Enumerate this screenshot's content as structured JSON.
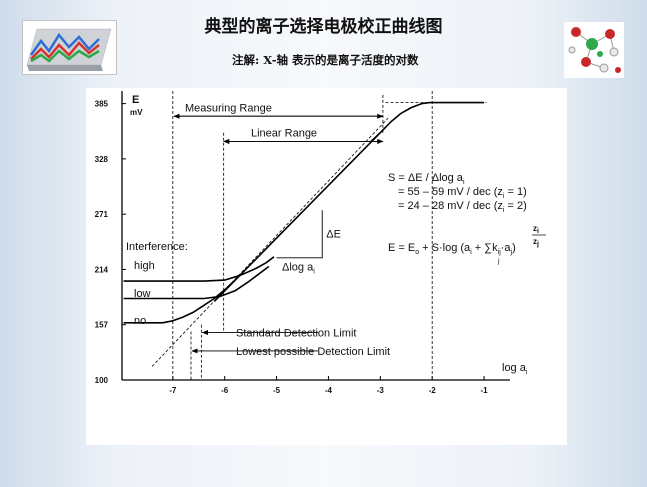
{
  "slide": {
    "title": "典型的离子选择电极校正曲线图",
    "note": "注解: X-轴 表示的是离子活度的对数"
  },
  "chart_data": {
    "type": "line",
    "x_axis": {
      "ticks": [
        -7,
        -6,
        -5,
        -4,
        -3,
        -2,
        -1
      ],
      "tick_labels": [
        "-7",
        "-6",
        "-5",
        "-4",
        "-3",
        "-2",
        "-1"
      ],
      "label_main": "log a",
      "label_sub": "i",
      "range": [
        -7.98,
        -0.5
      ]
    },
    "y_axis": {
      "ticks": [
        100,
        157,
        214,
        271,
        328,
        385
      ],
      "tick_labels": [
        "100",
        "157",
        "214",
        "271",
        "328",
        "385"
      ],
      "label": "E",
      "unit": "mV",
      "range": [
        100,
        398
      ]
    },
    "series": [
      {
        "key": "high",
        "label": "high",
        "x": [
          -7.95,
          -6.8,
          -6.4,
          -6.0,
          -5.7,
          -5.4,
          -5.2,
          -5.05
        ],
        "y": [
          202,
          202,
          202,
          203,
          208,
          215,
          221,
          227
        ]
      },
      {
        "key": "low",
        "label": "low",
        "x": [
          -7.95,
          -6.8,
          -6.4,
          -6.1,
          -5.8,
          -5.55,
          -5.35,
          -5.15
        ],
        "y": [
          184,
          184,
          184,
          186,
          192,
          201,
          209,
          217
        ]
      },
      {
        "key": "no",
        "label": "no",
        "x": [
          -7.95,
          -7.2,
          -7.0,
          -6.8,
          -6.6,
          -6.4,
          -6.2,
          -6.0,
          -5.8
        ],
        "y": [
          159,
          159,
          161,
          165,
          170,
          177,
          184,
          193,
          203
        ]
      },
      {
        "key": "linear",
        "label": "",
        "x": [
          -6.2,
          -3.0
        ],
        "y": [
          181,
          355
        ]
      },
      {
        "key": "upper",
        "label": "",
        "x": [
          -3.2,
          -3.0,
          -2.8,
          -2.6,
          -2.4,
          -2.2,
          -2.05,
          -1.0
        ],
        "y": [
          345,
          355,
          366,
          375,
          381,
          385,
          386,
          386
        ]
      }
    ],
    "guides": {
      "extrapolated_line": {
        "x": [
          -7.4,
          -2.85
        ],
        "y": [
          114,
          370
        ]
      },
      "upper_asymptote": {
        "x": [
          -2.9,
          -0.95
        ],
        "y": [
          386,
          386
        ]
      },
      "left_vertical_x": -7.0,
      "right_vertical_x": -2.0,
      "measuring_left_x": -6.98,
      "measuring_right_x": -2.95,
      "linear_left_x": -6.02,
      "linear_right_x": -2.95,
      "std_limit_x": -6.45,
      "lowest_limit_x": -6.65,
      "slope_triangle": {
        "x1": -5.0,
        "x2": -4.12,
        "y1": 226,
        "y2": 275
      }
    },
    "annotations": {
      "measuring_range": "Measuring Range",
      "linear_range": "Linear Range",
      "interference": "Interference:",
      "standard_detection_limit": "Standard Detection Limit",
      "lowest_detection_limit": "Lowest possible Detection Limit",
      "delta_e": "ΔE",
      "delta_log": "Δlog a",
      "delta_log_sub": "i",
      "slope_def": "S = ΔE / Δlog a",
      "slope_def_sub": "i",
      "slope_1": "= 55 – 59 mV / dec (z",
      "slope_1_sub": "i",
      "slope_1_end": " = 1)",
      "slope_2": "= 24 – 28 mV / dec (z",
      "slope_2_sub": "i",
      "slope_2_end": " = 2)",
      "eq_part1": "E = E",
      "eq_sub_o": "o",
      "eq_part2": " + S·log (a",
      "eq_sub_i": "i",
      "eq_part3": " + ",
      "eq_sum": "∑",
      "eq_sum_sub": "j",
      "eq_part4": "k",
      "eq_sub_ij": "ij",
      "eq_part5": "·a",
      "eq_sub_j": "j",
      "eq_exp_num": "z",
      "eq_exp_num_sub": "i",
      "eq_exp_den": "z",
      "eq_exp_den_sub": "j",
      "eq_end": ")"
    }
  },
  "colors": {
    "curve": "#000000",
    "guide": "#000000",
    "panel": "#ffffff"
  },
  "thumbnails": {
    "left_icon": "line-chart-thumbnail-icon",
    "right_icon": "molecule-model-icon"
  }
}
